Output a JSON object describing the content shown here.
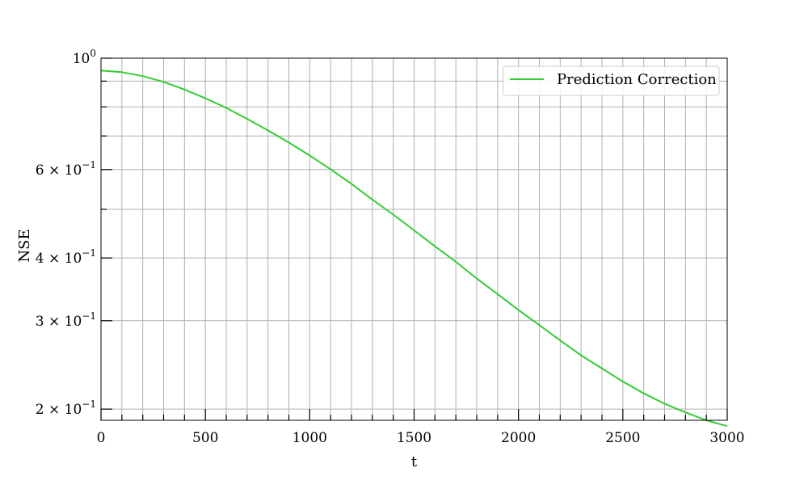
{
  "chart_data": {
    "type": "line",
    "xlabel": "t",
    "ylabel": "NSE",
    "xlim": [
      0,
      3000
    ],
    "ylim": [
      0.19,
      1.0
    ],
    "yscale": "log",
    "grid": true,
    "legend": "top-right",
    "x_ticks": [
      0,
      500,
      1000,
      1500,
      2000,
      2500,
      3000
    ],
    "x_tick_labels": [
      "0",
      "500",
      "1000",
      "1500",
      "2000",
      "2500",
      "3000"
    ],
    "y_ticks": [
      1.0,
      0.6,
      0.4,
      0.3,
      0.2
    ],
    "y_tick_labels": [
      {
        "mantissa": "10",
        "exp": "0"
      },
      {
        "mantissa": "6 × 10",
        "exp": "−1"
      },
      {
        "mantissa": "4 × 10",
        "exp": "−1"
      },
      {
        "mantissa": "3 × 10",
        "exp": "−1"
      },
      {
        "mantissa": "2 × 10",
        "exp": "−1"
      }
    ],
    "series": [
      {
        "name": "Prediction Correction",
        "color": "#33cc33",
        "x": [
          0,
          100,
          200,
          300,
          400,
          500,
          600,
          700,
          800,
          900,
          1000,
          1100,
          1200,
          1300,
          1400,
          1500,
          1600,
          1700,
          1800,
          1900,
          2000,
          2100,
          2200,
          2300,
          2400,
          2500,
          2600,
          2700,
          2800,
          2900,
          3000
        ],
        "y": [
          0.945,
          0.938,
          0.921,
          0.897,
          0.866,
          0.832,
          0.796,
          0.757,
          0.718,
          0.679,
          0.64,
          0.601,
          0.562,
          0.523,
          0.488,
          0.454,
          0.422,
          0.393,
          0.364,
          0.339,
          0.315,
          0.294,
          0.274,
          0.256,
          0.241,
          0.227,
          0.215,
          0.205,
          0.197,
          0.19,
          0.185
        ]
      }
    ]
  }
}
